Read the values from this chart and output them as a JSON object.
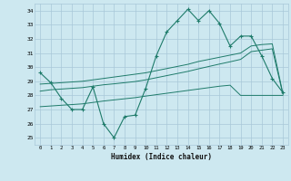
{
  "xlabel": "Humidex (Indice chaleur)",
  "x": [
    0,
    1,
    2,
    3,
    4,
    5,
    6,
    7,
    8,
    9,
    10,
    11,
    12,
    13,
    14,
    15,
    16,
    17,
    18,
    19,
    20,
    21,
    22,
    23
  ],
  "line1": [
    29.6,
    28.9,
    27.8,
    27.0,
    27.0,
    28.6,
    26.0,
    25.0,
    26.5,
    26.6,
    28.5,
    30.8,
    32.5,
    33.3,
    34.1,
    33.3,
    34.0,
    33.1,
    31.5,
    32.2,
    32.2,
    30.8,
    29.2,
    28.2
  ],
  "line2": [
    28.8,
    28.85,
    28.9,
    28.95,
    29.0,
    29.1,
    29.2,
    29.3,
    29.4,
    29.5,
    29.6,
    29.75,
    29.9,
    30.05,
    30.2,
    30.4,
    30.55,
    30.7,
    30.85,
    31.0,
    31.5,
    31.6,
    31.65,
    28.15
  ],
  "line3": [
    28.3,
    28.4,
    28.45,
    28.5,
    28.55,
    28.65,
    28.75,
    28.82,
    28.9,
    28.98,
    29.1,
    29.25,
    29.4,
    29.55,
    29.7,
    29.88,
    30.05,
    30.22,
    30.38,
    30.55,
    31.1,
    31.2,
    31.3,
    28.1
  ],
  "line4": [
    27.2,
    27.25,
    27.3,
    27.35,
    27.4,
    27.5,
    27.6,
    27.68,
    27.76,
    27.84,
    27.95,
    28.05,
    28.15,
    28.25,
    28.35,
    28.45,
    28.55,
    28.65,
    28.72,
    28.0,
    28.0,
    28.0,
    28.0,
    28.0
  ],
  "color": "#1e7b6a",
  "bg_color": "#cde8f0",
  "grid_color": "#a8c8d8",
  "ylim": [
    24.5,
    34.5
  ],
  "xlim": [
    -0.5,
    23.5
  ],
  "yticks": [
    25,
    26,
    27,
    28,
    29,
    30,
    31,
    32,
    33,
    34
  ]
}
